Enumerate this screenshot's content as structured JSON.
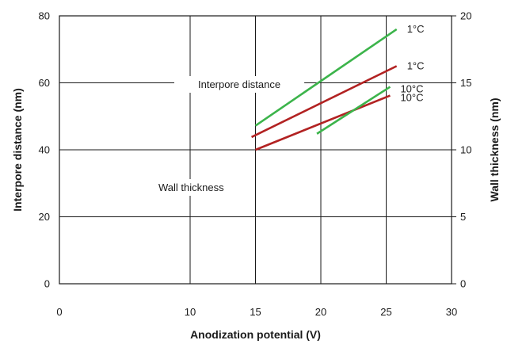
{
  "chart_data": {
    "type": "line",
    "title": "",
    "xlabel": "Anodization potential (V)",
    "ylabel": "Interpore distance (nm)",
    "y2label": "Wall thickness (nm)",
    "xlim": [
      0,
      30
    ],
    "ylim": [
      0,
      80
    ],
    "y2lim": [
      0,
      20
    ],
    "x_ticks": [
      "0",
      "10",
      "15",
      "20",
      "25",
      "30"
    ],
    "y_ticks": [
      "0",
      "20",
      "40",
      "60",
      "80"
    ],
    "y2_ticks": [
      "0",
      "5",
      "10",
      "15",
      "20"
    ],
    "grid": true,
    "annotations": {
      "interpore": "Interpore distance",
      "wall": "Wall thickness"
    },
    "series": [
      {
        "name": "1°C",
        "group": "interpore",
        "axis": "left",
        "color": "#b22222",
        "x": [
          14.7,
          25.8
        ],
        "y": [
          43.8,
          65.0
        ]
      },
      {
        "name": "10°C",
        "group": "interpore",
        "axis": "left",
        "color": "#b22222",
        "x": [
          15.0,
          25.3
        ],
        "y": [
          40.0,
          56.2
        ]
      },
      {
        "name": "1°C",
        "group": "wall",
        "axis": "right",
        "color": "#3cb44b",
        "x": [
          15.0,
          25.8
        ],
        "y": [
          11.8,
          19.0
        ]
      },
      {
        "name": "10°C",
        "group": "wall",
        "axis": "right",
        "color": "#3cb44b",
        "x": [
          19.7,
          25.3
        ],
        "y": [
          11.2,
          14.7
        ]
      }
    ]
  }
}
